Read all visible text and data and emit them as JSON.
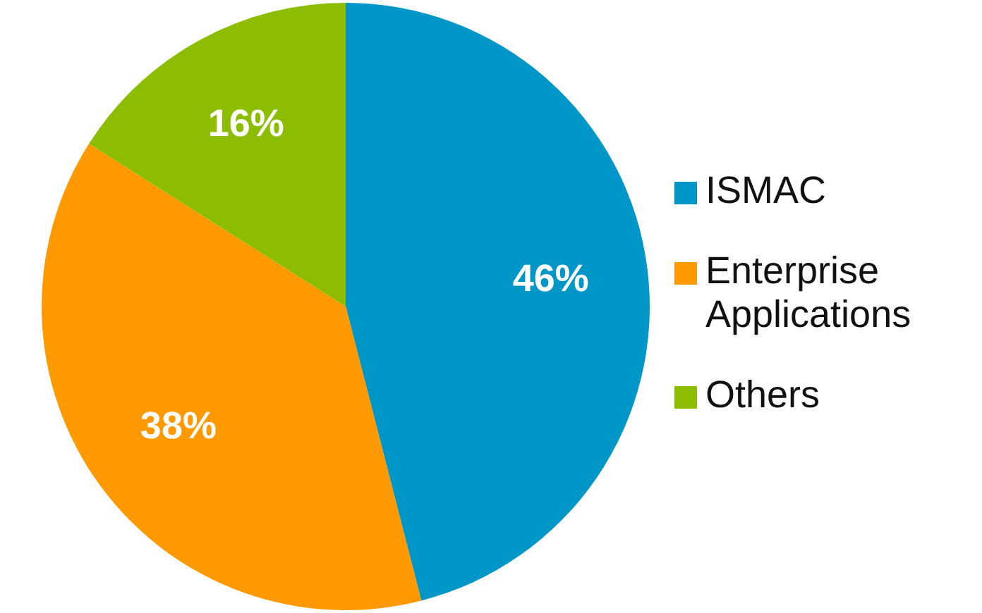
{
  "chart_data": {
    "type": "pie",
    "categories": [
      "ISMAC",
      "Enterprise Applications",
      "Others"
    ],
    "values": [
      46,
      38,
      16
    ],
    "colors": [
      "#0096c8",
      "#ff9900",
      "#8cbd00"
    ],
    "value_labels": [
      "46%",
      "38%",
      "16%"
    ],
    "legend": "right"
  }
}
